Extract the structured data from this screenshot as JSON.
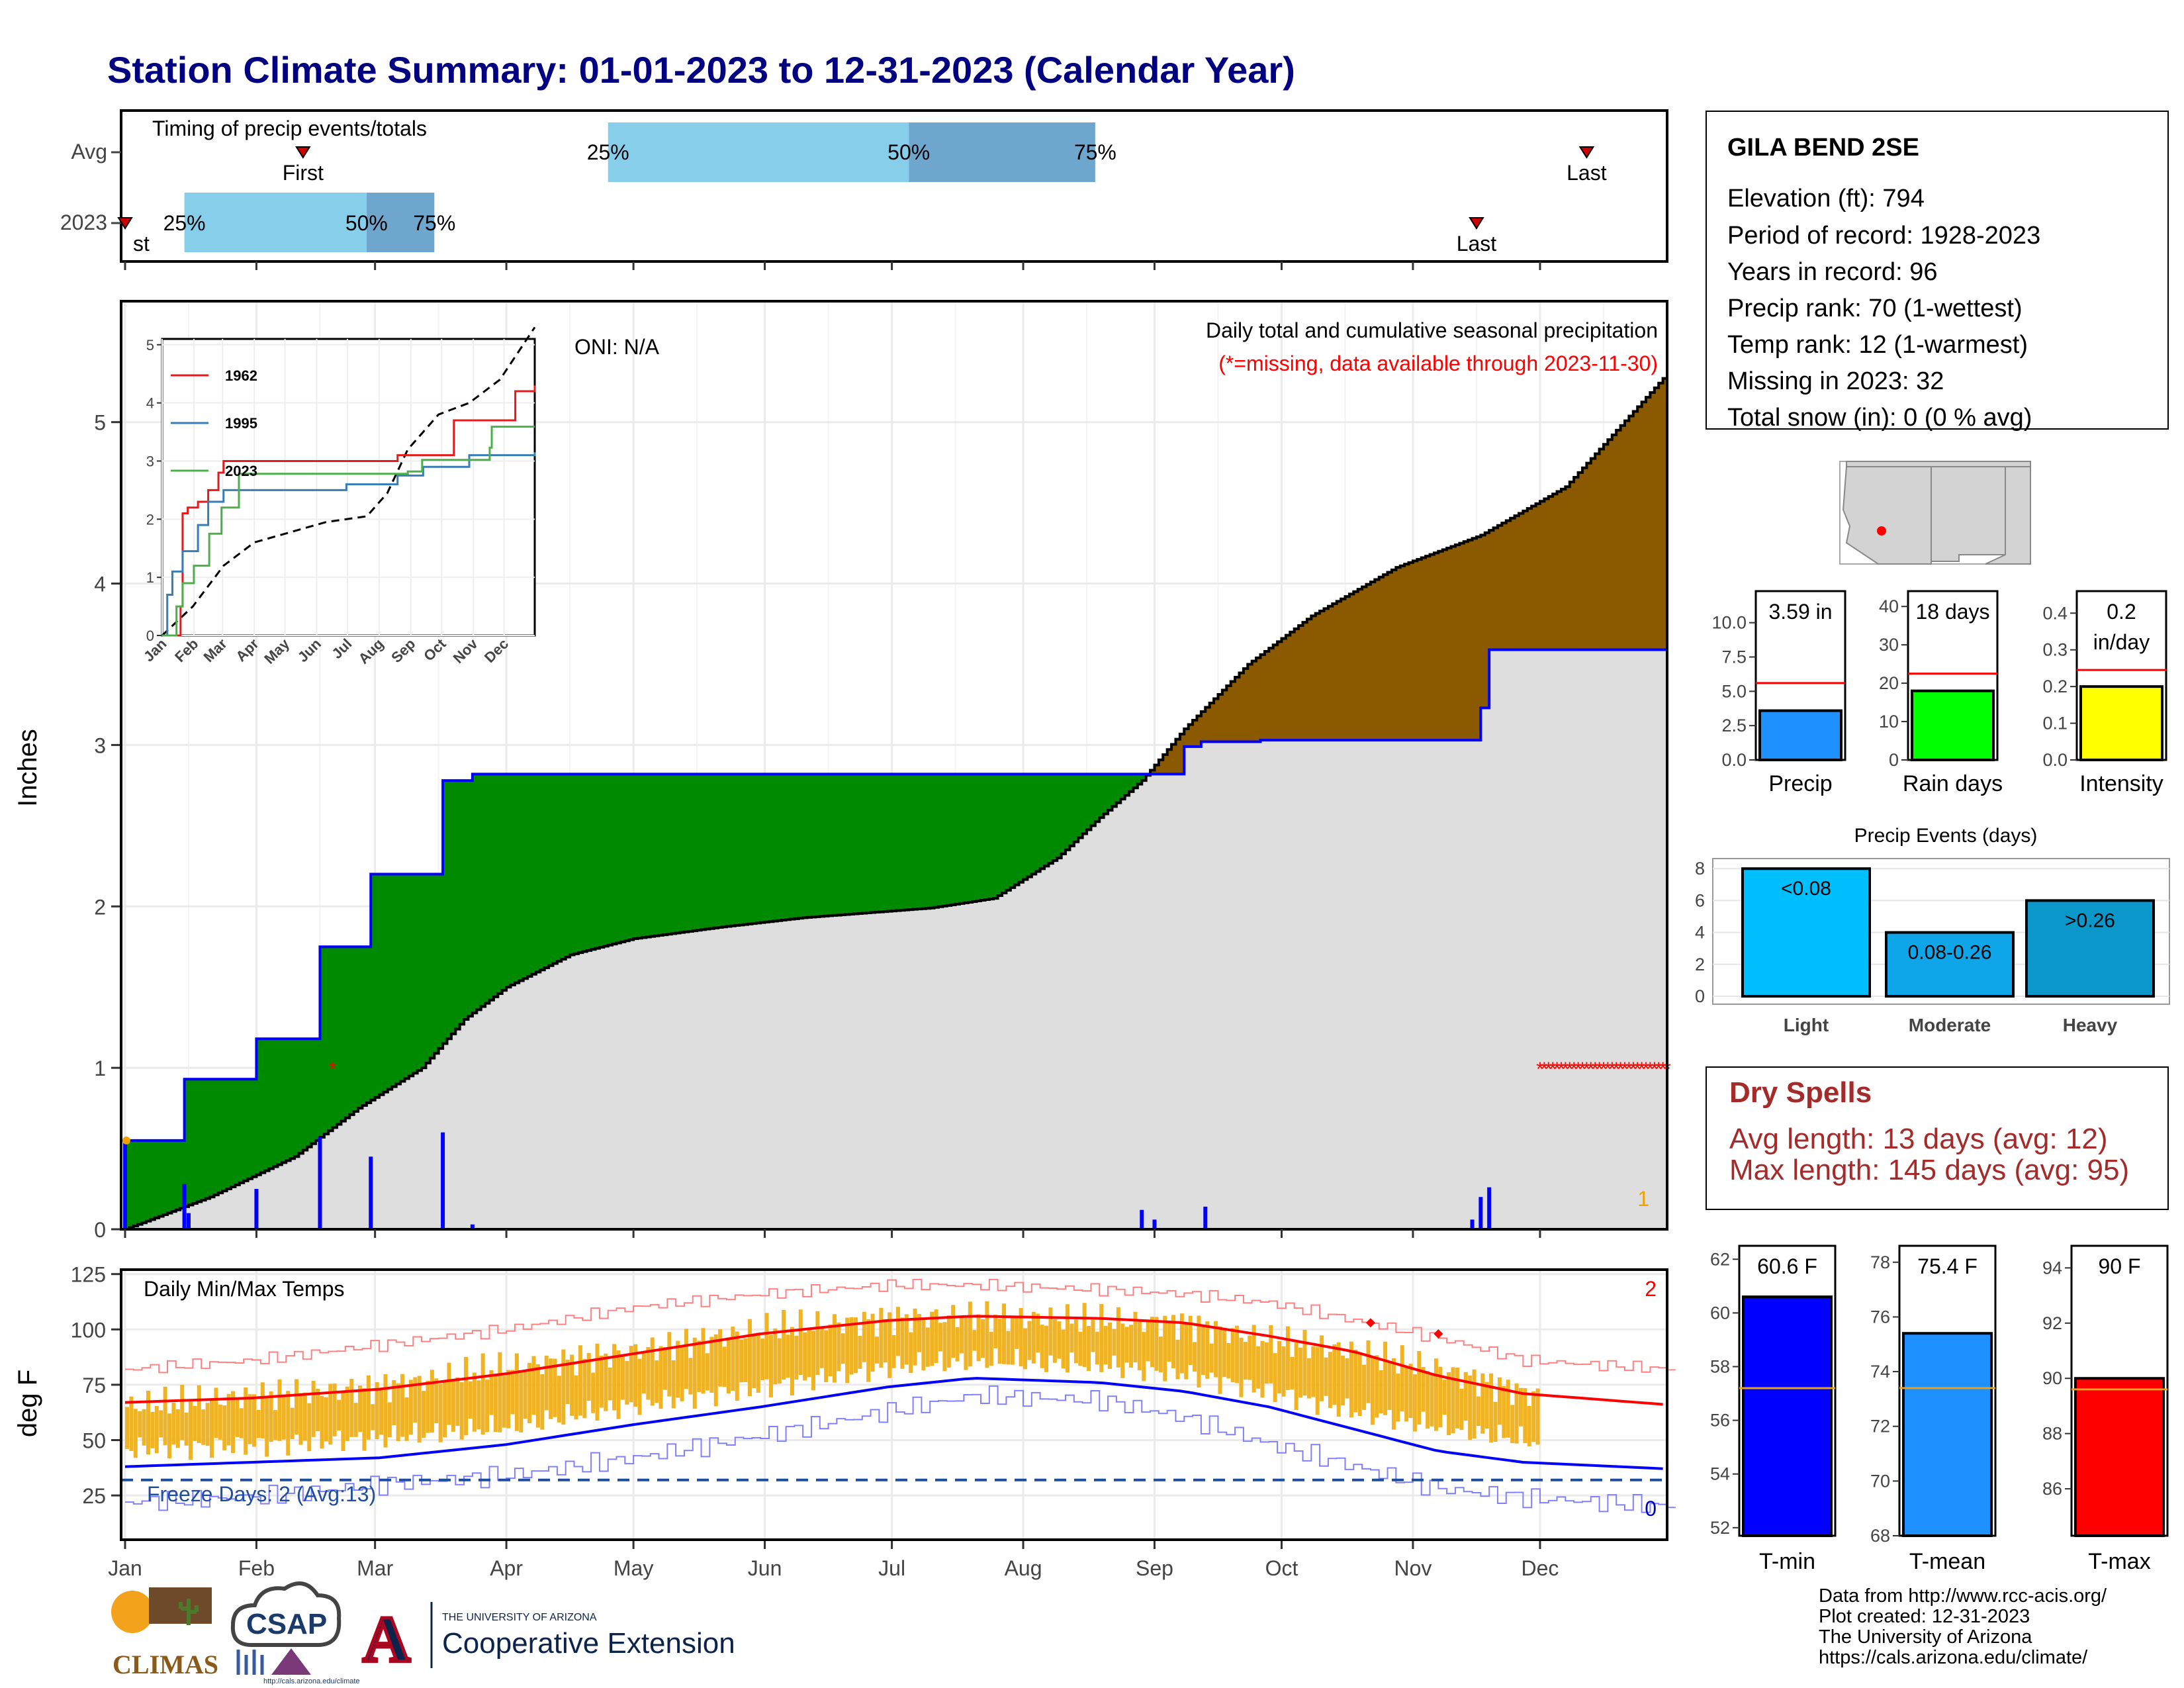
{
  "page_title": "Station Climate Summary: 01-01-2023 to 12-31-2023 (Calendar Year)",
  "months": [
    "Jan",
    "Feb",
    "Mar",
    "Apr",
    "May",
    "Jun",
    "Jul",
    "Aug",
    "Sep",
    "Oct",
    "Nov",
    "Dec"
  ],
  "chart_data": [
    {
      "id": "timing",
      "type": "bar",
      "title": "Timing of precip events/totals",
      "rows": [
        "Avg",
        "2023"
      ],
      "avg": {
        "first": "Feb 12",
        "last": "Dec 12",
        "p25": "Apr 25",
        "p50": "Jul 5",
        "p75": "Aug 18"
      },
      "y2023": {
        "first": "Jan 1",
        "last": "Nov 16",
        "p25": "Jan 15",
        "p50": "Feb 27",
        "p75": "Mar 15"
      },
      "labels": {
        "first": "First",
        "last": "Last",
        "first_clipped": "st",
        "p25": "25%",
        "p50": "50%",
        "p75": "75%"
      }
    },
    {
      "id": "precip",
      "type": "area",
      "title": "Daily total and cumulative seasonal precipitation",
      "subtitle": "(*=missing, data available through 2023-11-30)",
      "oni": "ONI: N/A",
      "ylabel": "Inches",
      "ylim": [
        0,
        5.8
      ],
      "yticks": [
        "0",
        "1",
        "2",
        "3",
        "4",
        "5"
      ],
      "cumulative_2023": [
        [
          0,
          0
        ],
        [
          0,
          0.55
        ],
        [
          14,
          0.55
        ],
        [
          14,
          0.93
        ],
        [
          31,
          0.93
        ],
        [
          31,
          1.18
        ],
        [
          46,
          1.18
        ],
        [
          46,
          1.75
        ],
        [
          58,
          1.75
        ],
        [
          58,
          2.2
        ],
        [
          75,
          2.2
        ],
        [
          75,
          2.78
        ],
        [
          82,
          2.78
        ],
        [
          82,
          2.82
        ],
        [
          240,
          2.82
        ],
        [
          240,
          2.82
        ],
        [
          250,
          2.82
        ],
        [
          250,
          2.99
        ],
        [
          254,
          2.99
        ],
        [
          254,
          3.02
        ],
        [
          268,
          3.02
        ],
        [
          268,
          3.03
        ],
        [
          320,
          3.03
        ],
        [
          320,
          3.23
        ],
        [
          322,
          3.23
        ],
        [
          322,
          3.59
        ],
        [
          364,
          3.59
        ]
      ],
      "cumulative_avg": [
        [
          0,
          0
        ],
        [
          20,
          0.2
        ],
        [
          40,
          0.45
        ],
        [
          55,
          0.75
        ],
        [
          70,
          1.0
        ],
        [
          80,
          1.3
        ],
        [
          90,
          1.5
        ],
        [
          105,
          1.7
        ],
        [
          120,
          1.8
        ],
        [
          140,
          1.87
        ],
        [
          160,
          1.93
        ],
        [
          190,
          1.99
        ],
        [
          205,
          2.05
        ],
        [
          220,
          2.3
        ],
        [
          230,
          2.55
        ],
        [
          240,
          2.78
        ],
        [
          250,
          3.1
        ],
        [
          265,
          3.5
        ],
        [
          280,
          3.8
        ],
        [
          300,
          4.1
        ],
        [
          320,
          4.3
        ],
        [
          340,
          4.6
        ],
        [
          364,
          5.3
        ]
      ],
      "daily_bars": [
        [
          0,
          0.55
        ],
        [
          14,
          0.28
        ],
        [
          15,
          0.1
        ],
        [
          31,
          0.25
        ],
        [
          46,
          0.57
        ],
        [
          58,
          0.45
        ],
        [
          75,
          0.6
        ],
        [
          82,
          0.03
        ],
        [
          240,
          0.12
        ],
        [
          243,
          0.06
        ],
        [
          255,
          0.14
        ],
        [
          318,
          0.06
        ],
        [
          320,
          0.2
        ],
        [
          322,
          0.26
        ]
      ],
      "missing_marker": [
        49,
        1.0
      ],
      "missing_range": [
        334,
        364,
        1.0
      ],
      "missing_count": "1"
    },
    {
      "id": "inset",
      "type": "line",
      "ylim": [
        0,
        5.1
      ],
      "yticks": [
        "0",
        "1",
        "2",
        "3",
        "4",
        "5"
      ],
      "xticks": [
        "Jan",
        "Feb",
        "Mar",
        "Apr",
        "May",
        "Jun",
        "Jul",
        "Aug",
        "Sep",
        "Oct",
        "Nov",
        "Dec"
      ],
      "series": [
        {
          "name": "1962",
          "color": "#e41a1c",
          "points": [
            [
              0,
              0
            ],
            [
              18,
              0.5
            ],
            [
              20,
              2.1
            ],
            [
              25,
              2.2
            ],
            [
              35,
              2.3
            ],
            [
              45,
              2.5
            ],
            [
              55,
              2.8
            ],
            [
              60,
              3.0
            ],
            [
              230,
              3.1
            ],
            [
              285,
              3.7
            ],
            [
              320,
              3.7
            ],
            [
              345,
              4.2
            ],
            [
              364,
              4.3
            ]
          ]
        },
        {
          "name": "1995",
          "color": "#377eb8",
          "points": [
            [
              0,
              0
            ],
            [
              5,
              0.7
            ],
            [
              10,
              1.1
            ],
            [
              20,
              1.45
            ],
            [
              35,
              1.9
            ],
            [
              45,
              2.3
            ],
            [
              60,
              2.5
            ],
            [
              140,
              2.5
            ],
            [
              180,
              2.6
            ],
            [
              230,
              2.75
            ],
            [
              255,
              2.9
            ],
            [
              300,
              3.1
            ],
            [
              364,
              3.15
            ]
          ]
        },
        {
          "name": "2023",
          "color": "#4daf4a",
          "points": [
            [
              0,
              0
            ],
            [
              14,
              0.5
            ],
            [
              20,
              0.9
            ],
            [
              31,
              1.2
            ],
            [
              46,
              1.75
            ],
            [
              58,
              2.2
            ],
            [
              75,
              2.78
            ],
            [
              240,
              2.82
            ],
            [
              254,
              3.02
            ],
            [
              320,
              3.23
            ],
            [
              322,
              3.59
            ],
            [
              364,
              3.59
            ]
          ]
        }
      ],
      "avg_line": [
        [
          0,
          0
        ],
        [
          30,
          0.5
        ],
        [
          60,
          1.2
        ],
        [
          90,
          1.6
        ],
        [
          120,
          1.75
        ],
        [
          160,
          1.95
        ],
        [
          200,
          2.05
        ],
        [
          220,
          2.45
        ],
        [
          240,
          3.2
        ],
        [
          270,
          3.8
        ],
        [
          300,
          4.0
        ],
        [
          330,
          4.4
        ],
        [
          364,
          5.3
        ]
      ]
    },
    {
      "id": "temps",
      "type": "line",
      "title": "Daily Min/Max Temps",
      "ylabel": "deg F",
      "ylim": [
        5,
        127
      ],
      "yticks": [
        "25",
        "50",
        "75",
        "100",
        "125"
      ],
      "freeze_label": "Freeze Days: 2 (Avg:13)",
      "freeze_line": 32,
      "count_top": "2",
      "count_bottom": "0",
      "avg_max": [
        [
          0,
          67
        ],
        [
          30,
          69
        ],
        [
          60,
          73
        ],
        [
          90,
          80
        ],
        [
          120,
          89
        ],
        [
          150,
          98
        ],
        [
          180,
          104
        ],
        [
          200,
          106
        ],
        [
          230,
          105
        ],
        [
          250,
          103
        ],
        [
          270,
          97
        ],
        [
          290,
          90
        ],
        [
          310,
          79
        ],
        [
          330,
          71
        ],
        [
          364,
          66
        ]
      ],
      "avg_min": [
        [
          0,
          38
        ],
        [
          30,
          40
        ],
        [
          60,
          42
        ],
        [
          90,
          48
        ],
        [
          120,
          57
        ],
        [
          150,
          65
        ],
        [
          180,
          74
        ],
        [
          200,
          78
        ],
        [
          230,
          76
        ],
        [
          250,
          72
        ],
        [
          270,
          65
        ],
        [
          290,
          55
        ],
        [
          310,
          45
        ],
        [
          330,
          40
        ],
        [
          364,
          37
        ]
      ],
      "rec_max": [
        [
          0,
          82
        ],
        [
          30,
          86
        ],
        [
          60,
          93
        ],
        [
          90,
          100
        ],
        [
          120,
          110
        ],
        [
          150,
          116
        ],
        [
          180,
          120
        ],
        [
          200,
          120
        ],
        [
          230,
          118
        ],
        [
          250,
          116
        ],
        [
          270,
          112
        ],
        [
          290,
          104
        ],
        [
          310,
          96
        ],
        [
          330,
          86
        ],
        [
          364,
          82
        ]
      ],
      "rec_min": [
        [
          0,
          22
        ],
        [
          30,
          24
        ],
        [
          60,
          30
        ],
        [
          90,
          34
        ],
        [
          120,
          42
        ],
        [
          150,
          52
        ],
        [
          180,
          63
        ],
        [
          200,
          70
        ],
        [
          230,
          68
        ],
        [
          250,
          60
        ],
        [
          270,
          48
        ],
        [
          290,
          38
        ],
        [
          310,
          28
        ],
        [
          330,
          24
        ],
        [
          364,
          20
        ]
      ],
      "obs_max_base": [
        [
          0,
          65
        ],
        [
          30,
          70
        ],
        [
          60,
          74
        ],
        [
          90,
          83
        ],
        [
          120,
          90
        ],
        [
          150,
          100
        ],
        [
          180,
          105
        ],
        [
          200,
          106
        ],
        [
          230,
          104
        ],
        [
          250,
          103
        ],
        [
          270,
          95
        ],
        [
          290,
          90
        ],
        [
          310,
          82
        ],
        [
          333,
          70
        ]
      ],
      "obs_min_base": [
        [
          0,
          38
        ],
        [
          30,
          40
        ],
        [
          60,
          43
        ],
        [
          90,
          48
        ],
        [
          120,
          58
        ],
        [
          150,
          66
        ],
        [
          180,
          75
        ],
        [
          200,
          78
        ],
        [
          230,
          76
        ],
        [
          250,
          72
        ],
        [
          270,
          64
        ],
        [
          290,
          55
        ],
        [
          310,
          48
        ],
        [
          333,
          41
        ]
      ],
      "record_points": [
        [
          294,
          103
        ],
        [
          310,
          98
        ]
      ]
    },
    {
      "id": "precip_stats",
      "type": "bar",
      "panels": [
        {
          "name": "Precip",
          "value": 3.59,
          "label": "3.59 in",
          "avg": 5.6,
          "ylim": [
            0,
            12.3
          ],
          "yticks": [
            "0.0",
            "2.5",
            "5.0",
            "7.5",
            "10.0"
          ],
          "color": "#1e90ff"
        },
        {
          "name": "Rain days",
          "value": 18,
          "label": "18 days",
          "avg": 22.5,
          "ylim": [
            0,
            44
          ],
          "yticks": [
            "0",
            "10",
            "20",
            "30",
            "40"
          ],
          "color": "#00ff00"
        },
        {
          "name": "Intensity",
          "value": 0.2,
          "label": "0.2 in/day",
          "avg": 0.245,
          "ylim": [
            0,
            0.46
          ],
          "yticks": [
            "0.0",
            "0.1",
            "0.2",
            "0.3",
            "0.4"
          ],
          "color": "#ffff00"
        }
      ]
    },
    {
      "id": "precip_events",
      "type": "bar",
      "title": "Precip Events (days)",
      "categories": [
        "Light",
        "Moderate",
        "Heavy"
      ],
      "values": [
        8,
        4,
        6
      ],
      "bar_labels": [
        "<0.08",
        "0.08-0.26",
        ">0.26"
      ],
      "colors": [
        "#00bfff",
        "#0ea5e9",
        "#0b97c9"
      ],
      "ylim": [
        0,
        8.3
      ],
      "yticks": [
        "0",
        "2",
        "4",
        "6",
        "8"
      ]
    },
    {
      "id": "temp_stats",
      "type": "bar",
      "panels": [
        {
          "name": "T-min",
          "value": 60.6,
          "label": "60.6 F",
          "avg": 57.2,
          "ylim": [
            51.7,
            62.5
          ],
          "yticks": [
            "52",
            "54",
            "56",
            "58",
            "60",
            "62"
          ],
          "color": "#0000ff"
        },
        {
          "name": "T-mean",
          "value": 75.4,
          "label": "75.4 F",
          "avg": 73.4,
          "ylim": [
            68,
            78.6
          ],
          "yticks": [
            "68",
            "70",
            "72",
            "74",
            "76",
            "78"
          ],
          "color": "#1e90ff"
        },
        {
          "name": "T-max",
          "value": 90,
          "label": "90 F",
          "avg": 89.6,
          "ylim": [
            84.3,
            94.8
          ],
          "yticks": [
            "86",
            "88",
            "90",
            "92",
            "94"
          ],
          "color": "#ff0000"
        }
      ]
    }
  ],
  "station": {
    "name": "GILA BEND 2SE",
    "lines": [
      "Elevation (ft): 794",
      "Period of record: 1928-2023",
      "Years in record: 96",
      "Precip rank: 70 (1-wettest)",
      "Temp rank: 12 (1-warmest)",
      "Missing in 2023: 32",
      "Total snow (in): 0 (0 % avg)"
    ]
  },
  "dry_spells": {
    "title": "Dry Spells",
    "lines": [
      "Avg length: 13 days (avg: 12)",
      "Max length: 145 days (avg: 95)"
    ]
  },
  "footer": [
    "Data from http://www.rcc-acis.org/",
    "Plot created: 12-31-2023",
    "The University of Arizona",
    "https://cals.arizona.edu/climate/"
  ],
  "logos": {
    "climas": "CLIMAS",
    "csap": "CSAP",
    "csap_url": "http://cals.arizona.edu/climate",
    "ua_small": "THE UNIVERSITY OF ARIZONA",
    "ua_big": "Cooperative Extension",
    "ua_letter": "A"
  },
  "colors": {
    "title": "#000080",
    "green_fill": "#008a00",
    "brown_fill": "#8b5a00",
    "gray_fill": "#dedede",
    "blue_line": "#0000ff",
    "temp_bar": "#f0b323",
    "dry_title": "#a52a2a"
  }
}
